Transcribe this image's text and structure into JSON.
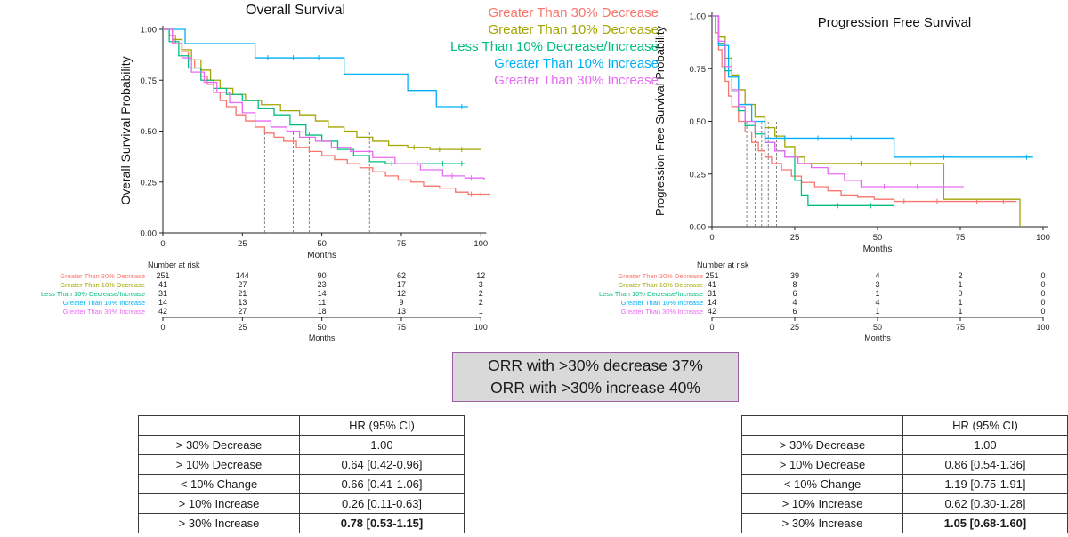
{
  "groups": [
    {
      "label": "Greater Than 30% Decrease",
      "color": "#F8766D"
    },
    {
      "label": "Greater Than 10% Decrease",
      "color": "#A3A500"
    },
    {
      "label": "Less Than 10% Decrease/Increase",
      "color": "#00BF7D"
    },
    {
      "label": "Greater Than 10% Increase",
      "color": "#00B0F6"
    },
    {
      "label": "Greater Than 30% Increase",
      "color": "#E76BF3"
    }
  ],
  "chart_data": [
    {
      "type": "line",
      "subtype": "kaplan-meier",
      "title": "Overall Survival",
      "xlabel": "Months",
      "ylabel": "Overall Survival Probability",
      "xlim": [
        0,
        103
      ],
      "ylim": [
        0,
        1
      ],
      "xticks": [
        0,
        25,
        50,
        75,
        100
      ],
      "ytick_values": [
        1,
        0.75,
        0.5,
        0.25,
        0
      ],
      "ytick_labels": [
        "1.00",
        "0.75",
        "0.50",
        "0.25",
        "0.00"
      ],
      "median_dashed_x": [
        32,
        41,
        46,
        65
      ],
      "series": [
        {
          "name": "Greater Than 30% Decrease",
          "color": "#F8766D",
          "steps": [
            [
              0,
              1.0
            ],
            [
              2,
              0.97
            ],
            [
              4,
              0.93
            ],
            [
              6,
              0.89
            ],
            [
              8,
              0.85
            ],
            [
              10,
              0.81
            ],
            [
              12,
              0.77
            ],
            [
              14,
              0.73
            ],
            [
              16,
              0.69
            ],
            [
              18,
              0.65
            ],
            [
              20,
              0.62
            ],
            [
              23,
              0.58
            ],
            [
              26,
              0.55
            ],
            [
              29,
              0.52
            ],
            [
              32,
              0.49
            ],
            [
              35,
              0.47
            ],
            [
              38,
              0.45
            ],
            [
              42,
              0.42
            ],
            [
              46,
              0.4
            ],
            [
              50,
              0.38
            ],
            [
              54,
              0.36
            ],
            [
              58,
              0.34
            ],
            [
              62,
              0.32
            ],
            [
              66,
              0.3
            ],
            [
              70,
              0.28
            ],
            [
              74,
              0.26
            ],
            [
              78,
              0.25
            ],
            [
              82,
              0.23
            ],
            [
              87,
              0.22
            ],
            [
              92,
              0.2
            ],
            [
              96,
              0.19
            ],
            [
              103,
              0.19
            ]
          ],
          "censors": [
            97,
            100
          ]
        },
        {
          "name": "Greater Than 10% Decrease",
          "color": "#A3A500",
          "steps": [
            [
              0,
              1.0
            ],
            [
              3,
              0.95
            ],
            [
              6,
              0.9
            ],
            [
              9,
              0.85
            ],
            [
              12,
              0.8
            ],
            [
              15,
              0.75
            ],
            [
              18,
              0.71
            ],
            [
              22,
              0.68
            ],
            [
              26,
              0.65
            ],
            [
              31,
              0.63
            ],
            [
              37,
              0.6
            ],
            [
              43,
              0.58
            ],
            [
              48,
              0.55
            ],
            [
              52,
              0.52
            ],
            [
              57,
              0.5
            ],
            [
              61,
              0.47
            ],
            [
              66,
              0.45
            ],
            [
              71,
              0.43
            ],
            [
              77,
              0.42
            ],
            [
              84,
              0.41
            ],
            [
              100,
              0.41
            ]
          ],
          "censors": [
            79,
            87,
            94
          ]
        },
        {
          "name": "Less Than 10% Decrease/Increase",
          "color": "#00BF7D",
          "steps": [
            [
              0,
              1.0
            ],
            [
              2,
              0.94
            ],
            [
              5,
              0.87
            ],
            [
              8,
              0.81
            ],
            [
              12,
              0.75
            ],
            [
              16,
              0.71
            ],
            [
              20,
              0.68
            ],
            [
              25,
              0.65
            ],
            [
              30,
              0.61
            ],
            [
              35,
              0.58
            ],
            [
              40,
              0.53
            ],
            [
              45,
              0.48
            ],
            [
              50,
              0.45
            ],
            [
              55,
              0.41
            ],
            [
              60,
              0.38
            ],
            [
              65,
              0.35
            ],
            [
              70,
              0.34
            ],
            [
              95,
              0.34
            ]
          ],
          "censors": [
            72,
            80,
            88,
            94
          ]
        },
        {
          "name": "Greater Than 10% Increase",
          "color": "#00B0F6",
          "steps": [
            [
              0,
              1.0
            ],
            [
              7,
              0.93
            ],
            [
              29,
              0.86
            ],
            [
              57,
              0.78
            ],
            [
              77,
              0.7
            ],
            [
              86,
              0.62
            ],
            [
              96,
              0.62
            ]
          ],
          "censors": [
            33,
            41,
            49,
            90,
            94
          ]
        },
        {
          "name": "Greater Than 30% Increase",
          "color": "#E76BF3",
          "steps": [
            [
              0,
              1.0
            ],
            [
              3,
              0.93
            ],
            [
              6,
              0.86
            ],
            [
              9,
              0.79
            ],
            [
              13,
              0.74
            ],
            [
              17,
              0.69
            ],
            [
              21,
              0.64
            ],
            [
              25,
              0.59
            ],
            [
              29,
              0.55
            ],
            [
              34,
              0.52
            ],
            [
              39,
              0.5
            ],
            [
              43,
              0.47
            ],
            [
              48,
              0.45
            ],
            [
              53,
              0.42
            ],
            [
              59,
              0.4
            ],
            [
              66,
              0.37
            ],
            [
              73,
              0.34
            ],
            [
              81,
              0.31
            ],
            [
              88,
              0.28
            ],
            [
              95,
              0.27
            ],
            [
              101,
              0.26
            ]
          ],
          "censors": [
            91,
            97
          ]
        }
      ],
      "risk_table": {
        "title": "Number at risk",
        "times": [
          0,
          25,
          50,
          75,
          100
        ],
        "rows": [
          {
            "label": "Greater Than 30% Decrease",
            "counts": [
              251,
              144,
              90,
              62,
              12
            ]
          },
          {
            "label": "Greater Than 10% Decrease",
            "counts": [
              41,
              27,
              23,
              17,
              3
            ]
          },
          {
            "label": "Less Than 10% Decrease/Increase",
            "counts": [
              31,
              21,
              14,
              12,
              2
            ]
          },
          {
            "label": "Greater Than 10% Increase",
            "counts": [
              14,
              13,
              11,
              9,
              2
            ]
          },
          {
            "label": "Greater Than 30% Increase",
            "counts": [
              42,
              27,
              18,
              13,
              1
            ]
          }
        ]
      }
    },
    {
      "type": "line",
      "subtype": "kaplan-meier",
      "title": "Progression Free Survival",
      "xlabel": "Months",
      "ylabel": "Progression Free Survival Probability",
      "xlim": [
        0,
        100
      ],
      "ylim": [
        0,
        1
      ],
      "xticks": [
        0,
        25,
        50,
        75,
        100
      ],
      "ytick_values": [
        1,
        0.75,
        0.5,
        0.25,
        0
      ],
      "ytick_labels": [
        "1.00",
        "0.75",
        "0.50",
        "0.25",
        "0.00"
      ],
      "median_dashed_x": [
        10.5,
        13,
        15,
        17,
        19.5
      ],
      "series": [
        {
          "name": "Greater Than 30% Decrease",
          "color": "#F8766D",
          "steps": [
            [
              0,
              1.0
            ],
            [
              1,
              0.92
            ],
            [
              2,
              0.84
            ],
            [
              3,
              0.76
            ],
            [
              4,
              0.69
            ],
            [
              5,
              0.62
            ],
            [
              6,
              0.57
            ],
            [
              8,
              0.5
            ],
            [
              10,
              0.45
            ],
            [
              12,
              0.4
            ],
            [
              14,
              0.36
            ],
            [
              16,
              0.33
            ],
            [
              18,
              0.3
            ],
            [
              21,
              0.27
            ],
            [
              24,
              0.24
            ],
            [
              27,
              0.21
            ],
            [
              31,
              0.19
            ],
            [
              35,
              0.17
            ],
            [
              39,
              0.15
            ],
            [
              44,
              0.14
            ],
            [
              49,
              0.13
            ],
            [
              55,
              0.12
            ],
            [
              92,
              0.12
            ]
          ],
          "censors": [
            58,
            68,
            80,
            88
          ]
        },
        {
          "name": "Greater Than 10% Decrease",
          "color": "#A3A500",
          "steps": [
            [
              0,
              1.0
            ],
            [
              2,
              0.9
            ],
            [
              4,
              0.8
            ],
            [
              6,
              0.72
            ],
            [
              8,
              0.65
            ],
            [
              10,
              0.58
            ],
            [
              13,
              0.52
            ],
            [
              16,
              0.47
            ],
            [
              19,
              0.43
            ],
            [
              22,
              0.38
            ],
            [
              25,
              0.33
            ],
            [
              28,
              0.3
            ],
            [
              70,
              0.13
            ],
            [
              93,
              0.0
            ]
          ],
          "censors": [
            45,
            60
          ]
        },
        {
          "name": "Less Than 10% Decrease/Increase",
          "color": "#00BF7D",
          "steps": [
            [
              0,
              1.0
            ],
            [
              2,
              0.87
            ],
            [
              4,
              0.74
            ],
            [
              6,
              0.64
            ],
            [
              8,
              0.55
            ],
            [
              10,
              0.48
            ],
            [
              13,
              0.44
            ],
            [
              16,
              0.4
            ],
            [
              19,
              0.36
            ],
            [
              22,
              0.33
            ],
            [
              25,
              0.22
            ],
            [
              27,
              0.15
            ],
            [
              29,
              0.1
            ],
            [
              55,
              0.1
            ]
          ],
          "censors": [
            38,
            48
          ]
        },
        {
          "name": "Greater Than 10% Increase",
          "color": "#00B0F6",
          "steps": [
            [
              0,
              1.0
            ],
            [
              2,
              0.86
            ],
            [
              5,
              0.71
            ],
            [
              8,
              0.58
            ],
            [
              12,
              0.5
            ],
            [
              16,
              0.42
            ],
            [
              55,
              0.33
            ],
            [
              97,
              0.33
            ]
          ],
          "censors": [
            22,
            32,
            42,
            70,
            95
          ]
        },
        {
          "name": "Greater Than 30% Increase",
          "color": "#E76BF3",
          "steps": [
            [
              0,
              1.0
            ],
            [
              2,
              0.88
            ],
            [
              4,
              0.76
            ],
            [
              6,
              0.65
            ],
            [
              8,
              0.57
            ],
            [
              10,
              0.5
            ],
            [
              13,
              0.45
            ],
            [
              16,
              0.4
            ],
            [
              19,
              0.36
            ],
            [
              22,
              0.33
            ],
            [
              26,
              0.3
            ],
            [
              30,
              0.28
            ],
            [
              35,
              0.25
            ],
            [
              40,
              0.22
            ],
            [
              45,
              0.19
            ],
            [
              76,
              0.19
            ]
          ],
          "censors": [
            52,
            62,
            70
          ]
        }
      ],
      "risk_table": {
        "title": "Number at risk",
        "times": [
          0,
          25,
          50,
          75,
          100
        ],
        "rows": [
          {
            "label": "Greater Than 30% Decrease",
            "counts": [
              251,
              39,
              4,
              2,
              0
            ]
          },
          {
            "label": "Greater Than 10% Decrease",
            "counts": [
              41,
              8,
              3,
              1,
              0
            ]
          },
          {
            "label": "Less Than 10% Decrease/Increase",
            "counts": [
              31,
              6,
              1,
              0,
              0
            ]
          },
          {
            "label": "Greater Than 10% Increase",
            "counts": [
              14,
              4,
              4,
              1,
              0
            ]
          },
          {
            "label": "Greater Than 30% Increase",
            "counts": [
              42,
              6,
              1,
              1,
              0
            ]
          }
        ]
      }
    }
  ],
  "orr_box": {
    "line1": "ORR with >30% decrease 37%",
    "line2": "ORR with >30% increase 40%"
  },
  "hr_tables": [
    {
      "name": "overall-survival-hr",
      "col_header": "HR (95% CI)",
      "rows": [
        {
          "label": "> 30% Decrease",
          "value": "1.00",
          "bold": false
        },
        {
          "label": "> 10% Decrease",
          "value": "0.64 [0.42-0.96]",
          "bold": false
        },
        {
          "label": "< 10% Change",
          "value": "0.66 [0.41-1.06]",
          "bold": false
        },
        {
          "label": "> 10% Increase",
          "value": "0.26 [0.11-0.63]",
          "bold": false
        },
        {
          "label": "> 30% Increase",
          "value": "0.78 [0.53-1.15]",
          "bold": true
        }
      ]
    },
    {
      "name": "progression-free-survival-hr",
      "col_header": "HR (95% CI)",
      "rows": [
        {
          "label": "> 30% Decrease",
          "value": "1.00",
          "bold": false
        },
        {
          "label": "> 10% Decrease",
          "value": "0.86 [0.54-1.36]",
          "bold": false
        },
        {
          "label": "< 10% Change",
          "value": "1.19 [0.75-1.91]",
          "bold": false
        },
        {
          "label": "> 10% Increase",
          "value": "0.62 [0.30-1.28]",
          "bold": false
        },
        {
          "label": "> 30% Increase",
          "value": "1.05 [0.68-1.60]",
          "bold": true
        }
      ]
    }
  ]
}
